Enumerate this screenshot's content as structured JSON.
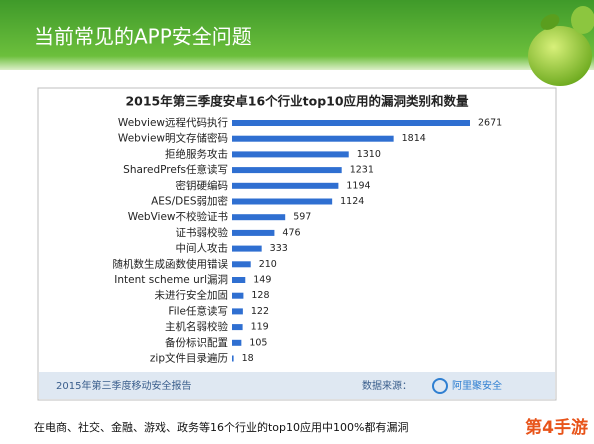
{
  "header": {
    "title": "当前常见的APP安全问题"
  },
  "chart_data": {
    "type": "bar",
    "orientation": "horizontal",
    "title": "2015年第三季度安卓16个行业top10应用的漏洞类别和数量",
    "categories": [
      "Webview远程代码执行",
      "Webview明文存储密码",
      "拒绝服务攻击",
      "SharedPrefs任意读写",
      "密钥硬编码",
      "AES/DES弱加密",
      "WebView不校验证书",
      "证书弱校验",
      "中间人攻击",
      "随机数生成函数使用错误",
      "Intent scheme url漏洞",
      "未进行安全加固",
      "File任意读写",
      "主机名弱校验",
      "备份标识配置",
      "zip文件目录遍历"
    ],
    "values": [
      2671,
      1814,
      1310,
      1231,
      1194,
      1124,
      597,
      476,
      333,
      210,
      149,
      128,
      122,
      119,
      105,
      18
    ],
    "color": "#2f6fd1"
  },
  "footer": {
    "report": "2015年第三季度移动安全报告",
    "source_label": "数据来源：",
    "source": "阿里聚安全"
  },
  "caption": "在电商、社交、金融、游戏、政务等16个行业的top10应用中100%都有漏洞",
  "watermark": "第4手游"
}
